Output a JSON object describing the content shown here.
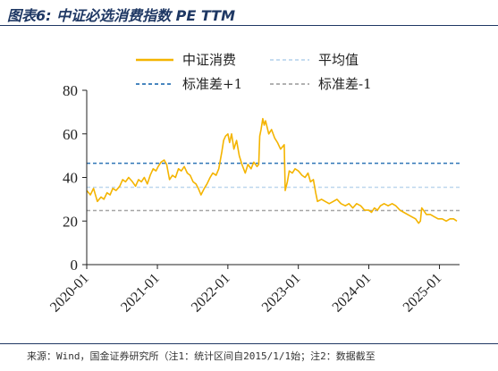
{
  "figure": {
    "title": "图表6: 中证必选消费指数 PE TTM",
    "source_note": "来源：Wind，国金证券研究所（注1：统计区间自2015/1/1始；注2：数据截至"
  },
  "chart_data": {
    "type": "line",
    "title": "",
    "xlabel": "",
    "ylabel": "",
    "ylim": [
      0,
      80
    ],
    "yticks": [
      0,
      20,
      40,
      60,
      80
    ],
    "x_range": [
      "2020-01-01",
      "2025-04-15"
    ],
    "xticks": [
      "2020-01",
      "2021-01",
      "2022-01",
      "2023-01",
      "2024-01",
      "2025-01"
    ],
    "grid": false,
    "legend_position": "top-center",
    "series": [
      {
        "name": "中证消费",
        "color": "#f4b400",
        "style": "solid",
        "points": [
          [
            "2020-01-01",
            34
          ],
          [
            "2020-01-20",
            32
          ],
          [
            "2020-02-05",
            35
          ],
          [
            "2020-02-25",
            29
          ],
          [
            "2020-03-15",
            31
          ],
          [
            "2020-03-30",
            30
          ],
          [
            "2020-04-15",
            33
          ],
          [
            "2020-05-01",
            32
          ],
          [
            "2020-05-15",
            35
          ],
          [
            "2020-06-01",
            34
          ],
          [
            "2020-06-20",
            36
          ],
          [
            "2020-07-05",
            39
          ],
          [
            "2020-07-20",
            38
          ],
          [
            "2020-08-05",
            40
          ],
          [
            "2020-08-25",
            38
          ],
          [
            "2020-09-10",
            36
          ],
          [
            "2020-09-25",
            39
          ],
          [
            "2020-10-10",
            38
          ],
          [
            "2020-10-25",
            40
          ],
          [
            "2020-11-10",
            37
          ],
          [
            "2020-11-25",
            41
          ],
          [
            "2020-12-10",
            44
          ],
          [
            "2020-12-25",
            43
          ],
          [
            "2021-01-05",
            45
          ],
          [
            "2021-01-20",
            47
          ],
          [
            "2021-02-05",
            48
          ],
          [
            "2021-02-18",
            46
          ],
          [
            "2021-03-05",
            39
          ],
          [
            "2021-03-20",
            41
          ],
          [
            "2021-04-05",
            40
          ],
          [
            "2021-04-20",
            44
          ],
          [
            "2021-05-05",
            43
          ],
          [
            "2021-05-20",
            45
          ],
          [
            "2021-06-05",
            42
          ],
          [
            "2021-06-20",
            41
          ],
          [
            "2021-07-05",
            38
          ],
          [
            "2021-07-20",
            37
          ],
          [
            "2021-08-01",
            35
          ],
          [
            "2021-08-15",
            32
          ],
          [
            "2021-09-01",
            35
          ],
          [
            "2021-09-15",
            37
          ],
          [
            "2021-10-01",
            40
          ],
          [
            "2021-10-15",
            42
          ],
          [
            "2021-11-01",
            41
          ],
          [
            "2021-11-15",
            44
          ],
          [
            "2021-12-01",
            52
          ],
          [
            "2021-12-10",
            57
          ],
          [
            "2021-12-20",
            59
          ],
          [
            "2022-01-01",
            60
          ],
          [
            "2022-01-10",
            56
          ],
          [
            "2022-01-20",
            60
          ],
          [
            "2022-02-01",
            53
          ],
          [
            "2022-02-15",
            57
          ],
          [
            "2022-03-01",
            50
          ],
          [
            "2022-03-15",
            46
          ],
          [
            "2022-04-01",
            42
          ],
          [
            "2022-04-15",
            46
          ],
          [
            "2022-05-01",
            44
          ],
          [
            "2022-05-15",
            47
          ],
          [
            "2022-06-01",
            45
          ],
          [
            "2022-06-10",
            46
          ],
          [
            "2022-06-15",
            59
          ],
          [
            "2022-06-22",
            62
          ],
          [
            "2022-07-01",
            67
          ],
          [
            "2022-07-08",
            64
          ],
          [
            "2022-07-15",
            66
          ],
          [
            "2022-08-01",
            60
          ],
          [
            "2022-08-15",
            62
          ],
          [
            "2022-09-01",
            58
          ],
          [
            "2022-09-15",
            56
          ],
          [
            "2022-10-01",
            53
          ],
          [
            "2022-10-20",
            55
          ],
          [
            "2022-10-25",
            34
          ],
          [
            "2022-11-05",
            38
          ],
          [
            "2022-11-15",
            43
          ],
          [
            "2022-12-01",
            42
          ],
          [
            "2022-12-15",
            44
          ],
          [
            "2023-01-01",
            43
          ],
          [
            "2023-01-20",
            41
          ],
          [
            "2023-02-05",
            40
          ],
          [
            "2023-02-20",
            42
          ],
          [
            "2023-03-05",
            38
          ],
          [
            "2023-03-20",
            39
          ],
          [
            "2023-04-01",
            33
          ],
          [
            "2023-04-10",
            29
          ],
          [
            "2023-05-01",
            30
          ],
          [
            "2023-05-20",
            29
          ],
          [
            "2023-06-10",
            28
          ],
          [
            "2023-07-01",
            29
          ],
          [
            "2023-07-20",
            30
          ],
          [
            "2023-08-10",
            28
          ],
          [
            "2023-09-01",
            27
          ],
          [
            "2023-09-20",
            28
          ],
          [
            "2023-10-10",
            26
          ],
          [
            "2023-10-30",
            28
          ],
          [
            "2023-11-20",
            27
          ],
          [
            "2023-12-10",
            25
          ],
          [
            "2024-01-01",
            25
          ],
          [
            "2024-01-15",
            24
          ],
          [
            "2024-01-30",
            26
          ],
          [
            "2024-02-15",
            25
          ],
          [
            "2024-03-01",
            27
          ],
          [
            "2024-03-20",
            28
          ],
          [
            "2024-04-10",
            27
          ],
          [
            "2024-05-01",
            28
          ],
          [
            "2024-05-20",
            27
          ],
          [
            "2024-06-10",
            25
          ],
          [
            "2024-06-30",
            24
          ],
          [
            "2024-07-20",
            23
          ],
          [
            "2024-08-10",
            22
          ],
          [
            "2024-08-30",
            21
          ],
          [
            "2024-09-15",
            19
          ],
          [
            "2024-09-24",
            20
          ],
          [
            "2024-10-01",
            26
          ],
          [
            "2024-10-10",
            25
          ],
          [
            "2024-10-25",
            23
          ],
          [
            "2024-11-15",
            23
          ],
          [
            "2024-12-05",
            22
          ],
          [
            "2024-12-25",
            21
          ],
          [
            "2025-01-15",
            21
          ],
          [
            "2025-02-05",
            20
          ],
          [
            "2025-02-25",
            21
          ],
          [
            "2025-03-15",
            21
          ],
          [
            "2025-04-01",
            20
          ]
        ]
      },
      {
        "name": "平均值",
        "color": "#bdd7ee",
        "style": "dashed",
        "value": 35.5
      },
      {
        "name": "标准差+1",
        "color": "#2e75b6",
        "style": "dashed",
        "value": 46.5
      },
      {
        "name": "标准差-1",
        "color": "#a6a6a6",
        "style": "dashed",
        "value": 24.8
      }
    ]
  }
}
